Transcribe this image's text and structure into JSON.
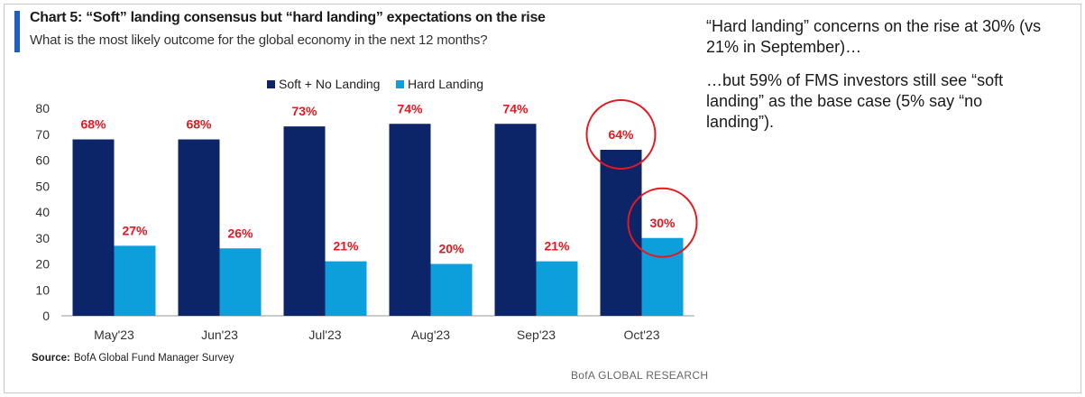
{
  "title": "Chart 5: “Soft” landing consensus but “hard landing” expectations on the rise",
  "subtitle": "What is the most likely outcome for the global economy in the next 12 months?",
  "source_label": "Source:",
  "source_text": "BofA Global Fund Manager Survey",
  "footer": "BofA GLOBAL RESEARCH",
  "commentary": [
    "“Hard landing” concerns on the rise at 30% (vs 21% in September)…",
    "…but 59% of FMS investors still see “soft landing” as the base case (5% say “no landing”)."
  ],
  "colors": {
    "soft": "#0c2468",
    "hard": "#0d9fdc",
    "label": "#e8171f",
    "accent": "#1f5fbf"
  },
  "chart_data": {
    "type": "bar",
    "categories": [
      "May'23",
      "Jun'23",
      "Jul'23",
      "Aug'23",
      "Sep'23",
      "Oct'23"
    ],
    "series": [
      {
        "name": "Soft + No Landing",
        "values": [
          68,
          68,
          73,
          74,
          74,
          64
        ],
        "labels": [
          "68%",
          "68%",
          "73%",
          "74%",
          "74%",
          "64%"
        ]
      },
      {
        "name": "Hard Landing",
        "values": [
          27,
          26,
          21,
          20,
          21,
          30
        ],
        "labels": [
          "27%",
          "26%",
          "21%",
          "20%",
          "21%",
          "30%"
        ]
      }
    ],
    "yticks": [
      0,
      10,
      20,
      30,
      40,
      50,
      60,
      70,
      80
    ],
    "ylim": [
      0,
      80
    ],
    "grid": false,
    "legend": "top-center",
    "highlighted": [
      "Oct'23 Soft + No Landing",
      "Oct'23 Hard Landing"
    ]
  }
}
